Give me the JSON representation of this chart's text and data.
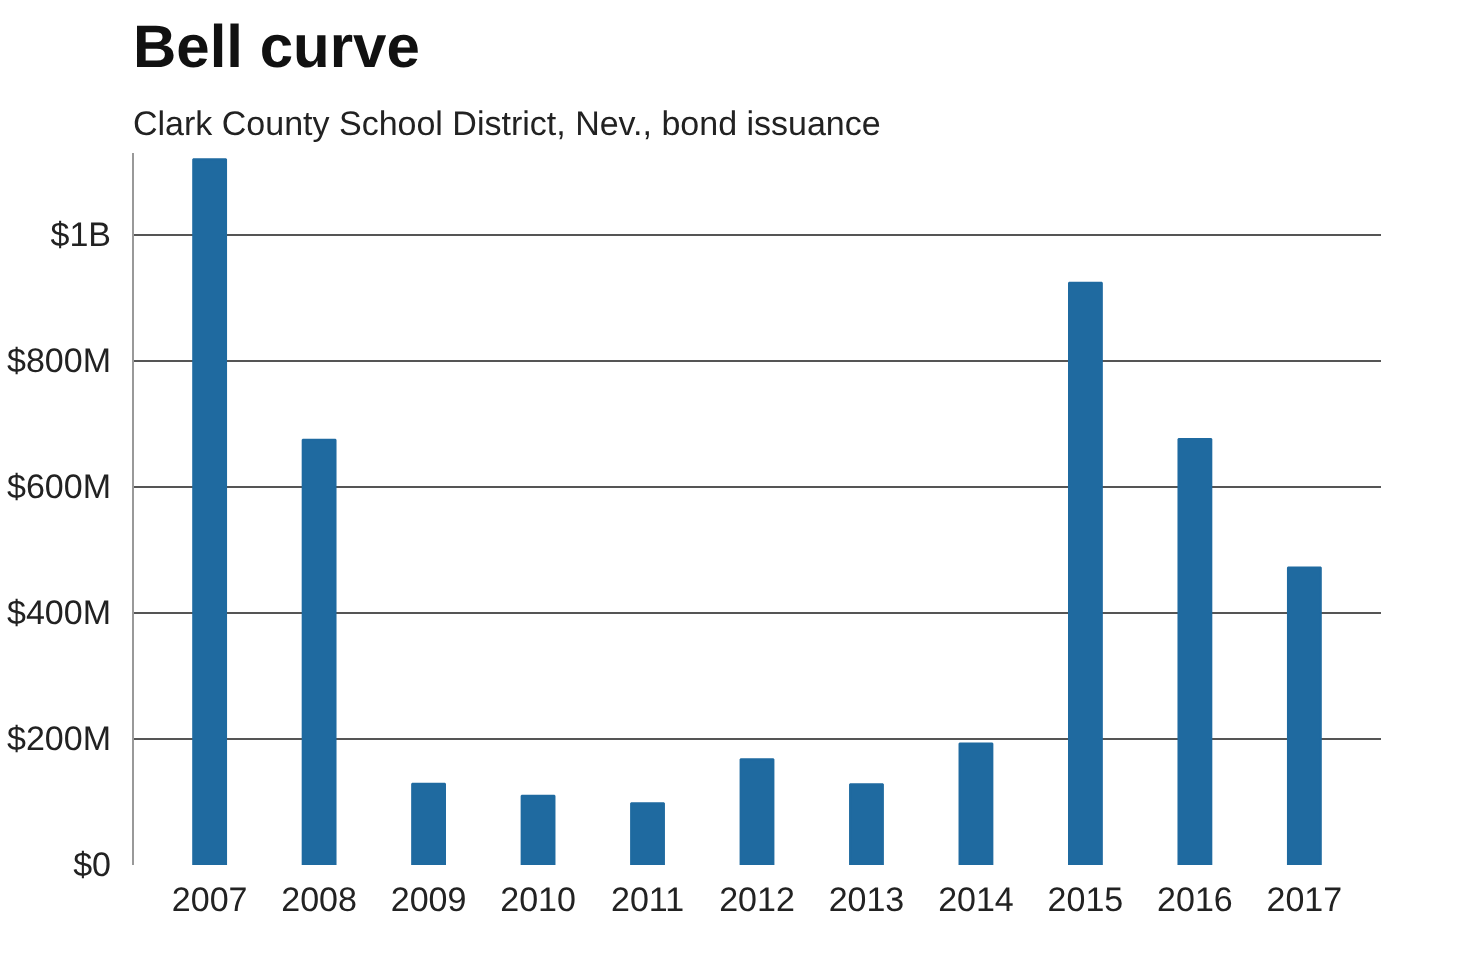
{
  "chart_data": {
    "type": "bar",
    "title": "Bell curve",
    "subtitle": "Clark County School District, Nev., bond issuance",
    "categories": [
      "2007",
      "2008",
      "2009",
      "2010",
      "2011",
      "2012",
      "2013",
      "2014",
      "2015",
      "2016",
      "2017"
    ],
    "values": [
      1120000000,
      675000000,
      129000000,
      110000000,
      98000000,
      168000000,
      128000000,
      193000000,
      924000000,
      676000000,
      472000000
    ],
    "color": "#1f6aa0",
    "ylim": [
      0,
      1130000000
    ],
    "yticks": [
      {
        "value": 0,
        "label": "$0"
      },
      {
        "value": 200000000,
        "label": "$200M"
      },
      {
        "value": 400000000,
        "label": "$400M"
      },
      {
        "value": 600000000,
        "label": "$600M"
      },
      {
        "value": 800000000,
        "label": "$800M"
      },
      {
        "value": 1000000000,
        "label": "$1B"
      }
    ],
    "grid": "y"
  }
}
